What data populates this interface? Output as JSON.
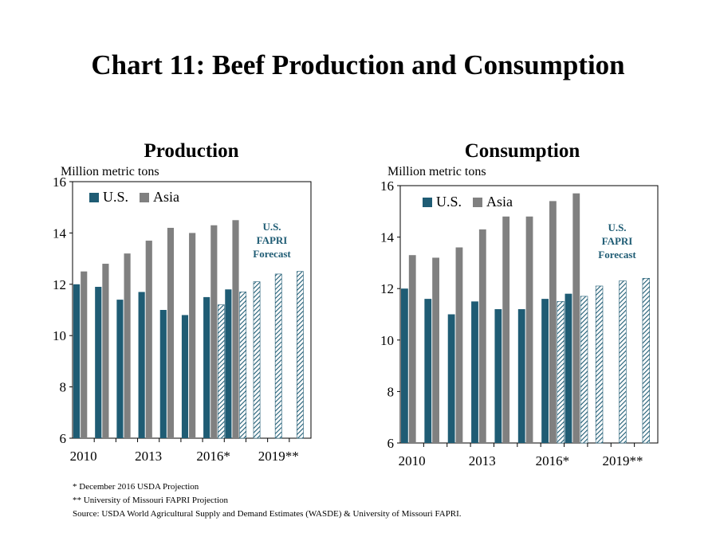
{
  "title": "Chart 11: Beef Production and Consumption",
  "colors": {
    "us": "#1f5c74",
    "asia": "#808080",
    "forecast_hatch": "#1f5c74"
  },
  "legend": {
    "us": "U.S.",
    "asia": "Asia"
  },
  "forecast_note": [
    "U.S.",
    "FAPRI",
    "Forecast"
  ],
  "footnotes": [
    "* December 2016 USDA Projection",
    "** University of Missouri FAPRI Projection",
    "Source: USDA World Agricultural Supply and Demand Estimates (WASDE) & University of Missouri FAPRI."
  ],
  "chart_data": [
    {
      "type": "bar",
      "title": "Production",
      "ylabel": "Million metric tons",
      "ylim": [
        6,
        16
      ],
      "yticks": [
        6,
        8,
        10,
        12,
        14,
        16
      ],
      "x_tick_labels": [
        "2010",
        "2013",
        "2016*",
        "2019**"
      ],
      "categories": [
        "2010",
        "2011",
        "2012",
        "2013",
        "2014",
        "2015",
        "2016",
        "2017",
        "2018",
        "2019",
        "2020"
      ],
      "series": [
        {
          "name": "U.S.",
          "values": [
            12.0,
            11.9,
            11.4,
            11.7,
            11.0,
            10.8,
            11.5,
            11.8,
            null,
            null,
            null
          ]
        },
        {
          "name": "Asia",
          "values": [
            12.5,
            12.8,
            13.2,
            13.7,
            14.2,
            14.0,
            14.3,
            14.5,
            null,
            null,
            null
          ]
        }
      ],
      "forecast": {
        "values": [
          null,
          null,
          null,
          null,
          null,
          null,
          11.2,
          11.7,
          12.1,
          12.4,
          12.5
        ]
      }
    },
    {
      "type": "bar",
      "title": "Consumption",
      "ylabel": "Million metric tons",
      "ylim": [
        6,
        16
      ],
      "yticks": [
        6,
        8,
        10,
        12,
        14,
        16
      ],
      "x_tick_labels": [
        "2010",
        "2013",
        "2016*",
        "2019**"
      ],
      "categories": [
        "2010",
        "2011",
        "2012",
        "2013",
        "2014",
        "2015",
        "2016",
        "2017",
        "2018",
        "2019",
        "2020"
      ],
      "series": [
        {
          "name": "U.S.",
          "values": [
            12.0,
            11.6,
            11.0,
            11.5,
            11.2,
            11.2,
            11.6,
            11.8,
            null,
            null,
            null
          ]
        },
        {
          "name": "Asia",
          "values": [
            13.3,
            13.2,
            13.6,
            14.3,
            14.8,
            14.8,
            15.4,
            15.7,
            null,
            null,
            null
          ]
        }
      ],
      "forecast": {
        "values": [
          null,
          null,
          null,
          null,
          null,
          null,
          11.5,
          11.7,
          12.1,
          12.3,
          12.4
        ]
      }
    }
  ]
}
